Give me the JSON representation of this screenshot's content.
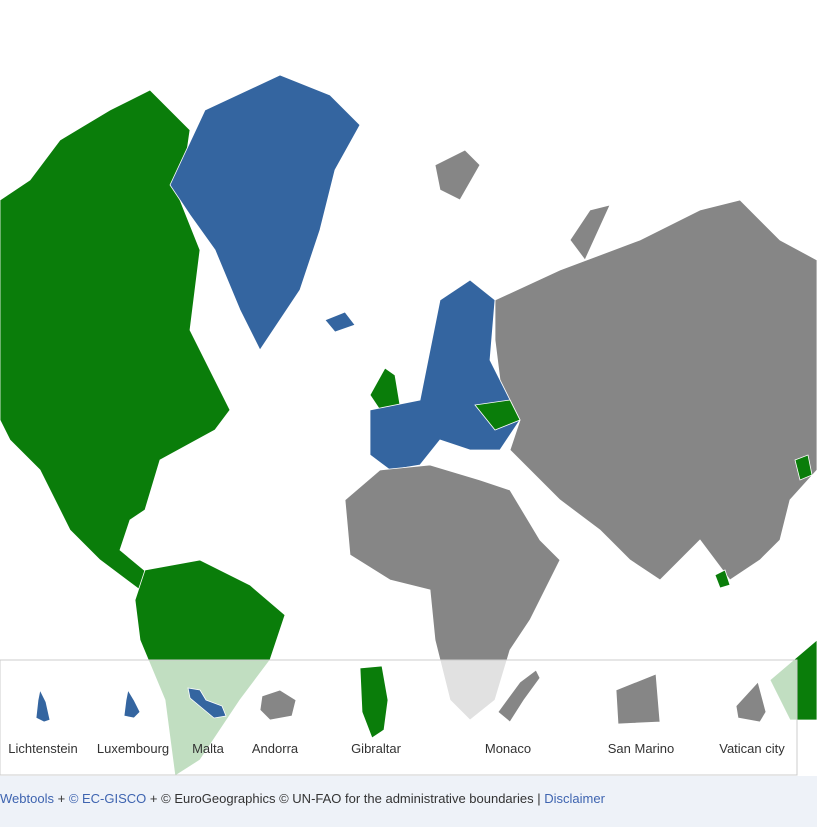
{
  "inset": {
    "items": [
      "Lichtenstein",
      "Luxembourg",
      "Malta",
      "Andorra",
      "Gibraltar",
      "Monaco",
      "San Marino",
      "Vatican city"
    ]
  },
  "footer": {
    "webtools": "Webtools",
    "plus": "+",
    "gisco": "© EC-GISCO",
    "credits": "+ © EuroGeographics © UN-FAO for the administrative boundaries |",
    "disclaimer": "Disclaimer"
  }
}
